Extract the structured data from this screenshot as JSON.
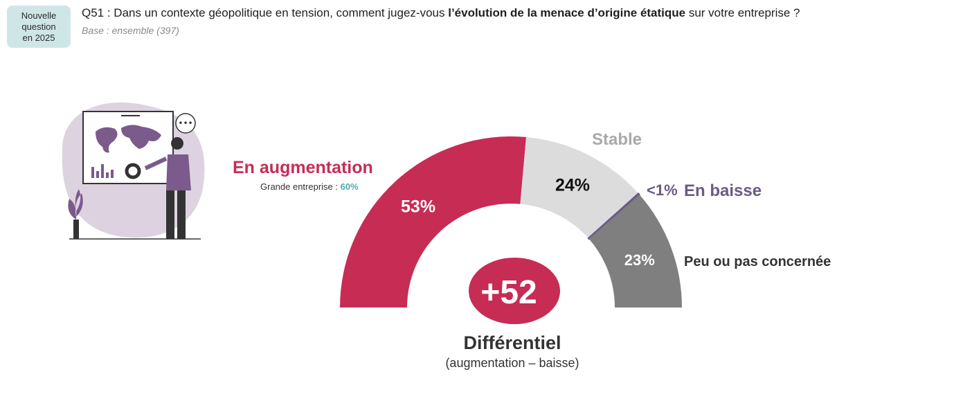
{
  "badge": {
    "line1": "Nouvelle",
    "line2": "question",
    "line3": "en 2025"
  },
  "question": {
    "prefix": "Q51 : Dans un contexte géopolitique en tension, comment jugez-vous ",
    "bold": "l’évolution de la menace d’origine étatique",
    "suffix": " sur votre entreprise ?"
  },
  "base": {
    "label": "Base",
    "sep": " : ",
    "text": "ensemble (397)"
  },
  "colors": {
    "augmentation": "#c72c55",
    "stable": "#dcdcdc",
    "baisse": "#6b5a86",
    "peu": "#7f7f7f",
    "teal": "#4faaa8"
  },
  "chart_data": {
    "type": "pie",
    "subtype": "semi-donut",
    "slices": [
      {
        "name": "En augmentation",
        "value": 53,
        "label": "53%"
      },
      {
        "name": "Stable",
        "value": 24,
        "label": "24%"
      },
      {
        "name": "En baisse",
        "value": 0.3,
        "label": "<1%"
      },
      {
        "name": "Peu ou pas concernée",
        "value": 23,
        "label": "23%"
      }
    ],
    "annotation": {
      "text": "Grande entreprise : ",
      "value": "60%"
    },
    "differential": {
      "value": "+52",
      "title": "Différentiel",
      "subtitle": "(augmentation – baisse)"
    }
  }
}
